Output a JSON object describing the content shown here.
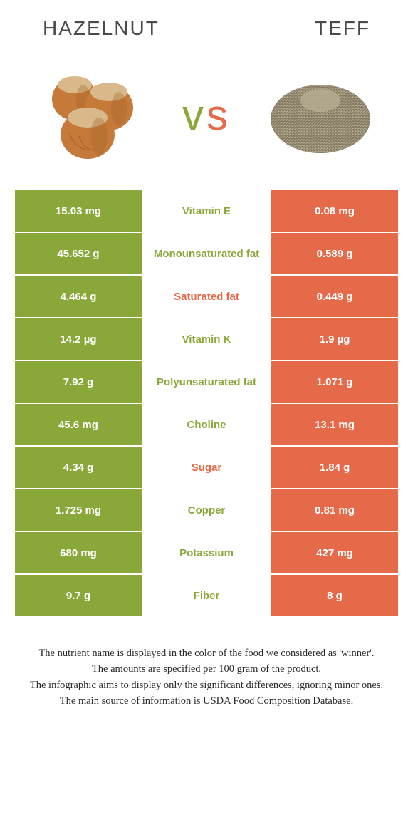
{
  "header": {
    "left": "Hazelnut",
    "right": "Teff"
  },
  "vs": {
    "v": "v",
    "s": "s"
  },
  "colors": {
    "left": "#8aa83a",
    "right": "#e56a4a",
    "text": "#2a2a2a"
  },
  "rows": [
    {
      "left": "15.03 mg",
      "label": "Vitamin E",
      "right": "0.08 mg",
      "winner": "left"
    },
    {
      "left": "45.652 g",
      "label": "Monounsaturated fat",
      "right": "0.589 g",
      "winner": "left"
    },
    {
      "left": "4.464 g",
      "label": "Saturated fat",
      "right": "0.449 g",
      "winner": "right"
    },
    {
      "left": "14.2 µg",
      "label": "Vitamin K",
      "right": "1.9 µg",
      "winner": "left"
    },
    {
      "left": "7.92 g",
      "label": "Polyunsaturated fat",
      "right": "1.071 g",
      "winner": "left"
    },
    {
      "left": "45.6 mg",
      "label": "Choline",
      "right": "13.1 mg",
      "winner": "left"
    },
    {
      "left": "4.34 g",
      "label": "Sugar",
      "right": "1.84 g",
      "winner": "right"
    },
    {
      "left": "1.725 mg",
      "label": "Copper",
      "right": "0.81 mg",
      "winner": "left"
    },
    {
      "left": "680 mg",
      "label": "Potassium",
      "right": "427 mg",
      "winner": "left"
    },
    {
      "left": "9.7 g",
      "label": "Fiber",
      "right": "8 g",
      "winner": "left"
    }
  ],
  "footer": {
    "l1": "The nutrient name is displayed in the color of the food we considered as 'winner'.",
    "l2": "The amounts are specified per 100 gram of the product.",
    "l3": "The infographic aims to display only the significant differences, ignoring minor ones.",
    "l4": "The main source of information is USDA Food Composition Database."
  }
}
